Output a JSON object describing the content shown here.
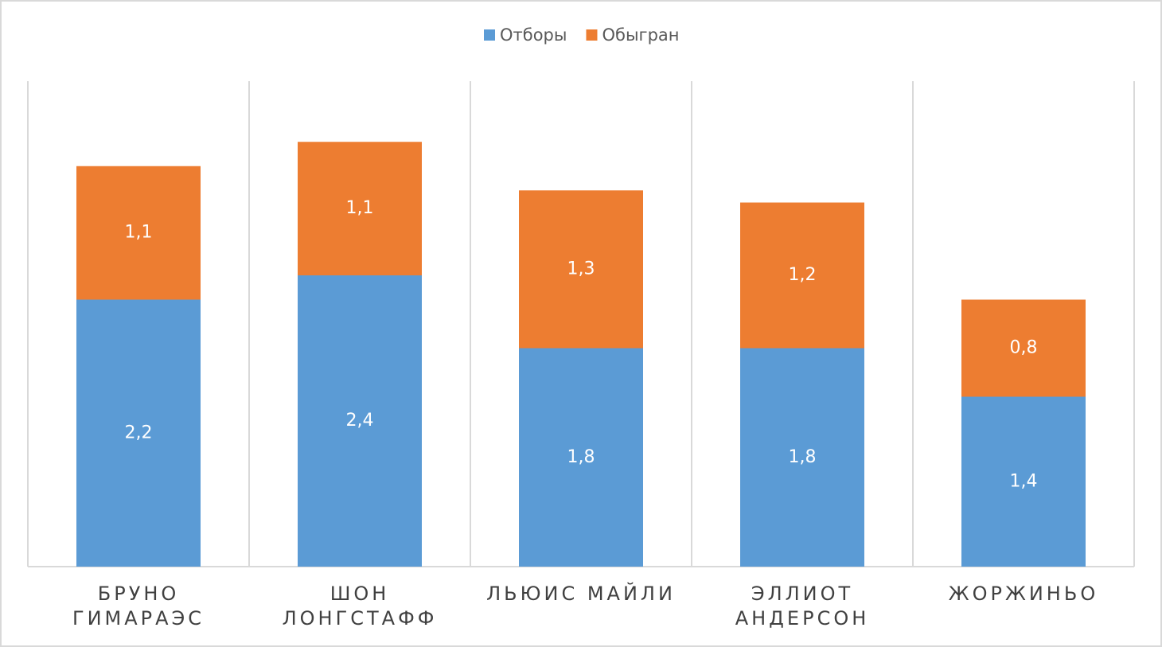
{
  "chart_data": {
    "type": "stacked_bar",
    "categories": [
      "БРУНО\nГИМАРАЭС",
      "ШОН\nЛОНГСТАФФ",
      "ЛЬЮИС МАЙЛИ",
      "ЭЛЛИОТ\nАНДЕРСОН",
      "ЖОРЖИНЬО"
    ],
    "series": [
      {
        "name": "Отборы",
        "color": "#5b9bd5",
        "values": [
          2.2,
          2.4,
          1.8,
          1.8,
          1.4
        ],
        "value_labels": [
          "2,2",
          "2,4",
          "1,8",
          "1,8",
          "1,4"
        ]
      },
      {
        "name": "Обыгран",
        "color": "#ed7d31",
        "values": [
          1.1,
          1.1,
          1.3,
          1.2,
          0.8
        ],
        "value_labels": [
          "1,1",
          "1,1",
          "1,3",
          "1,2",
          "0,8"
        ]
      }
    ],
    "ylim": [
      0,
      4
    ],
    "legend": "top"
  }
}
